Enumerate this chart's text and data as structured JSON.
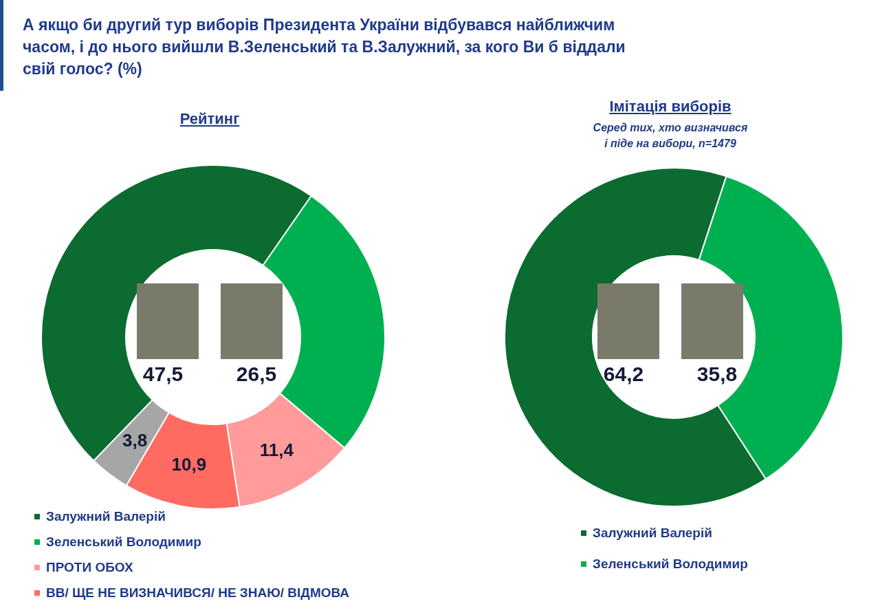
{
  "chart_data": [
    {
      "type": "donut",
      "title": "Рейтинг",
      "annotations": [
        "А якщо би другий тур виборів Президента України відбувався найближчим часом, і до нього вийшли В.Зеленський та В.Залужний, за кого Ви б віддали свій голос? (%)"
      ],
      "categories": [
        "Залужний Валерій",
        "Зеленський Володимир",
        "ПРОТИ ОБОХ",
        "ВВ/ ЩЕ НЕ ВИЗНАЧИВСЯ/ НЕ ЗНАЮ/ ВІДМОВА",
        null
      ],
      "values": [
        47.5,
        26.5,
        11.4,
        10.9,
        3.8
      ],
      "colors": [
        "#0b6b30",
        "#00b050",
        "#ff9b9b",
        "#ff6b61",
        "#a6a6a6"
      ],
      "value_labels": [
        "47,5",
        "26,5",
        "11,4",
        "10,9",
        "3,8"
      ],
      "legend": "bottom"
    },
    {
      "type": "donut",
      "title": "Імітація виборів",
      "subtitle": "Серед тих, хто визначився\nі піде на вибори, n=1479",
      "categories": [
        "Залужний Валерій",
        "Зеленський Володимир"
      ],
      "values": [
        64.2,
        35.8
      ],
      "colors": [
        "#0b6b30",
        "#00b050"
      ],
      "value_labels": [
        "64,2",
        "35,8"
      ],
      "legend": "bottom"
    }
  ]
}
